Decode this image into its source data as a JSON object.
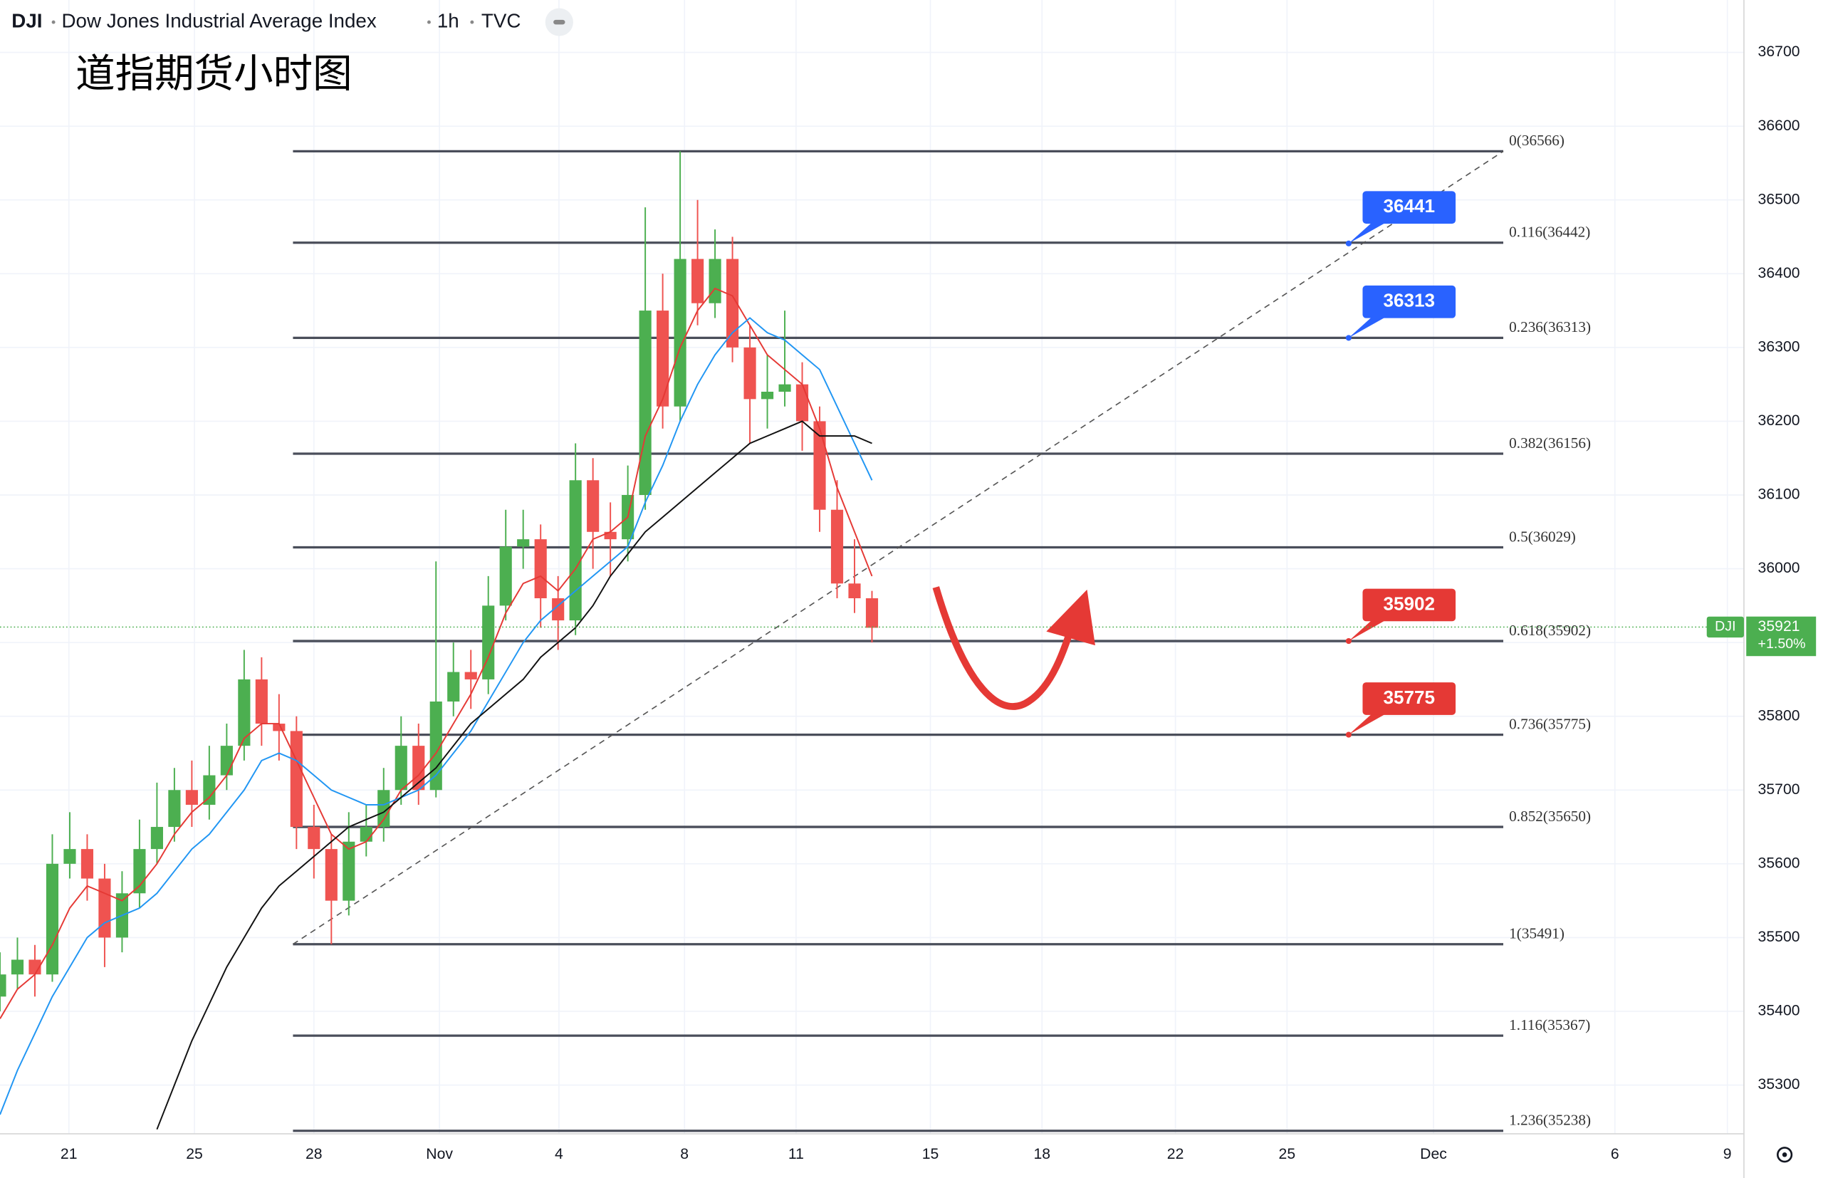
{
  "header": {
    "symbol": "DJI",
    "name": "Dow Jones Industrial Average Index",
    "interval": "1h",
    "source": "TVC"
  },
  "chart_data": {
    "type": "candlestick",
    "title": "道指期货小时图",
    "xlim": [
      0,
      200
    ],
    "ylim": [
      35234,
      36771
    ],
    "grid": true,
    "xticks": [
      {
        "value": 7.9,
        "label": "21"
      },
      {
        "value": 22.3,
        "label": "25"
      },
      {
        "value": 36,
        "label": "28"
      },
      {
        "value": 50.4,
        "label": "Nov"
      },
      {
        "value": 64.1,
        "label": "4"
      },
      {
        "value": 78.5,
        "label": "8"
      },
      {
        "value": 91.3,
        "label": "11"
      },
      {
        "value": 106.7,
        "label": "15"
      },
      {
        "value": 119.5,
        "label": "18"
      },
      {
        "value": 134.8,
        "label": "22"
      },
      {
        "value": 147.6,
        "label": "25"
      },
      {
        "value": 164.4,
        "label": "Dec"
      },
      {
        "value": 185.2,
        "label": "6"
      },
      {
        "value": 198.1,
        "label": "9"
      }
    ],
    "yticks": [
      35300,
      35400,
      35500,
      35600,
      35700,
      35800,
      35900,
      36000,
      36100,
      36200,
      36300,
      36400,
      36500,
      36600,
      36700
    ],
    "up_color": "#4caf50",
    "down_color": "#ef5350",
    "x": [
      0,
      2,
      4,
      6,
      8,
      10,
      12,
      14,
      16,
      18,
      20,
      22,
      24,
      26,
      28,
      30,
      32,
      34,
      36,
      38,
      40,
      42,
      44,
      46,
      48,
      50,
      52,
      54,
      56,
      58,
      60,
      62,
      64,
      66,
      68,
      70,
      72,
      74,
      76,
      78,
      80,
      82,
      84,
      86,
      88,
      90,
      92,
      94,
      96,
      98,
      100
    ],
    "open": [
      35420,
      35450,
      35470,
      35450,
      35600,
      35620,
      35580,
      35500,
      35560,
      35620,
      35650,
      35700,
      35680,
      35720,
      35760,
      35850,
      35790,
      35780,
      35650,
      35620,
      35550,
      35630,
      35650,
      35700,
      35760,
      35700,
      35820,
      35860,
      35850,
      35950,
      36030,
      36040,
      35960,
      35930,
      36120,
      36050,
      36040,
      36100,
      36350,
      36220,
      36420,
      36360,
      36420,
      36300,
      36230,
      36240,
      36250,
      36200,
      36080,
      35980,
      35960
    ],
    "high": [
      35480,
      35500,
      35490,
      35640,
      35670,
      35640,
      35600,
      35590,
      35660,
      35710,
      35730,
      35740,
      35760,
      35790,
      35890,
      35880,
      35830,
      35800,
      35680,
      35640,
      35670,
      35680,
      35730,
      35800,
      35790,
      36010,
      35900,
      35890,
      35990,
      36080,
      36080,
      36060,
      35990,
      36170,
      36150,
      36090,
      36140,
      36490,
      36400,
      36566,
      36500,
      36460,
      36450,
      36330,
      36290,
      36350,
      36280,
      36220,
      36120,
      36040,
      35970
    ],
    "low": [
      35400,
      35430,
      35420,
      35440,
      35580,
      35550,
      35460,
      35480,
      35540,
      35600,
      35630,
      35650,
      35660,
      35700,
      35740,
      35760,
      35740,
      35620,
      35580,
      35491,
      35530,
      35610,
      35630,
      35680,
      35680,
      35690,
      35800,
      35810,
      35830,
      35930,
      36000,
      35920,
      35890,
      35910,
      36000,
      35990,
      36010,
      36080,
      36190,
      36200,
      36330,
      36340,
      36280,
      36170,
      36190,
      36220,
      36160,
      36050,
      35960,
      35940,
      35900
    ],
    "close": [
      35450,
      35470,
      35450,
      35600,
      35620,
      35580,
      35500,
      35560,
      35620,
      35650,
      35700,
      35680,
      35720,
      35760,
      35850,
      35790,
      35780,
      35650,
      35620,
      35550,
      35630,
      35650,
      35700,
      35760,
      35700,
      35820,
      35860,
      35850,
      35950,
      36030,
      36040,
      35960,
      35930,
      36120,
      36050,
      36040,
      36100,
      36350,
      36220,
      36420,
      36360,
      36420,
      36300,
      36230,
      36240,
      36250,
      36200,
      36080,
      35980,
      35960,
      35920
    ],
    "series": [
      {
        "color": "#e53935",
        "values": [
          35390,
          35430,
          35450,
          35490,
          35540,
          35570,
          35560,
          35550,
          35570,
          35600,
          35640,
          35670,
          35690,
          35720,
          35770,
          35790,
          35790,
          35740,
          35690,
          35640,
          35620,
          35630,
          35660,
          35700,
          35720,
          35750,
          35790,
          35830,
          35880,
          35940,
          35980,
          35990,
          35970,
          36000,
          36040,
          36050,
          36070,
          36180,
          36230,
          36300,
          36350,
          36380,
          36370,
          36330,
          36290,
          36270,
          36250,
          36190,
          36110,
          36050,
          35990
        ]
      },
      {
        "color": "#2196f3",
        "values": [
          35260,
          35320,
          35370,
          35420,
          35460,
          35500,
          35520,
          35530,
          35540,
          35560,
          35590,
          35620,
          35640,
          35670,
          35700,
          35740,
          35750,
          35740,
          35720,
          35700,
          35690,
          35680,
          35680,
          35690,
          35700,
          35720,
          35750,
          35780,
          35820,
          35860,
          35900,
          35930,
          35950,
          35970,
          35990,
          36010,
          36030,
          36090,
          36140,
          36200,
          36250,
          36290,
          36320,
          36340,
          36320,
          36310,
          36290,
          36270,
          36220,
          36170,
          36120
        ]
      },
      {
        "color": "#111111",
        "values": [
          null,
          null,
          null,
          null,
          null,
          null,
          null,
          null,
          null,
          35240,
          35300,
          35360,
          35410,
          35460,
          35500,
          35540,
          35570,
          35590,
          35610,
          35630,
          35650,
          35660,
          35670,
          35690,
          35710,
          35730,
          35760,
          35790,
          35810,
          35830,
          35850,
          35880,
          35900,
          35920,
          35950,
          35990,
          36020,
          36050,
          36070,
          36090,
          36110,
          36130,
          36150,
          36170,
          36180,
          36190,
          36200,
          36180,
          36180,
          36180,
          36170
        ]
      }
    ],
    "fib_xlim": [
      33.6,
      172.4
    ],
    "fib_levels": [
      {
        "label": "0(36566)",
        "value": 36566
      },
      {
        "label": "0.116(36442)",
        "value": 36442
      },
      {
        "label": "0.236(36313)",
        "value": 36313
      },
      {
        "label": "0.382(36156)",
        "value": 36156
      },
      {
        "label": "0.5(36029)",
        "value": 36029
      },
      {
        "label": "0.618(35902)",
        "value": 35902
      },
      {
        "label": "0.736(35775)",
        "value": 35775
      },
      {
        "label": "0.852(35650)",
        "value": 35650
      },
      {
        "label": "1(35491)",
        "value": 35491
      },
      {
        "label": "1.116(35367)",
        "value": 35367
      },
      {
        "label": "1.236(35238)",
        "value": 35238
      }
    ],
    "trendline": {
      "x": [
        33.6,
        172.4
      ],
      "y": [
        35491,
        36566
      ]
    },
    "callouts": [
      {
        "value": 36441,
        "color": "#2962ff"
      },
      {
        "value": 36313,
        "color": "#2962ff"
      },
      {
        "value": 35902,
        "color": "#e53935"
      },
      {
        "value": 35775,
        "color": "#e53935"
      }
    ],
    "last_price": {
      "symbol": "DJI",
      "value": 35921,
      "change": "+1.50%",
      "color": "#4caf50"
    }
  }
}
